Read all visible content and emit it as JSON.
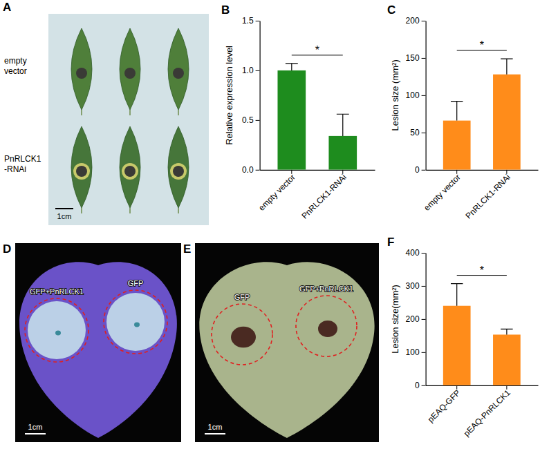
{
  "chart_data": [
    {
      "panel_label": "B",
      "type": "bar",
      "categories": [
        "empty vector",
        "PnRLCK1-RNAi"
      ],
      "values": [
        1.0,
        0.34
      ],
      "errors": [
        0.07,
        0.22
      ],
      "color": "#1e8c1e",
      "ylim": [
        0,
        1.5
      ],
      "yticks": [
        {
          "value": 0,
          "label": "0.0"
        },
        {
          "value": 0.5,
          "label": "0.5"
        },
        {
          "value": 1,
          "label": "1.0"
        },
        {
          "value": 1.5,
          "label": "1.5"
        }
      ],
      "y_label": "Relative expression level",
      "annotations": [
        {
          "text": "*"
        }
      ]
    },
    {
      "panel_label": "C",
      "type": "bar",
      "categories": [
        "empty vector",
        "PnRLCK1-RNAi"
      ],
      "values": [
        66,
        128
      ],
      "errors": [
        26,
        21
      ],
      "color": "#ff8c1a",
      "ylim": [
        0,
        200
      ],
      "yticks": [
        0,
        50,
        100,
        150,
        200
      ],
      "y_label": "Lesion size (mm²)",
      "annotations": [
        {
          "text": "*"
        }
      ]
    },
    {
      "panel_label": "F",
      "type": "bar",
      "categories": [
        "pEAQ-GFP",
        "pEAQ-PnRLCK1"
      ],
      "values": [
        240,
        153
      ],
      "errors": [
        67,
        17
      ],
      "color": "#ff8c1a",
      "ylim": [
        0,
        400
      ],
      "yticks": [
        0,
        100,
        200,
        300,
        400
      ],
      "y_label": "Lesion size(mm²)",
      "annotations": [
        {
          "text": "*"
        }
      ]
    }
  ],
  "image_panels": [
    {
      "panel_label": "A",
      "row_labels": [
        "empty vector",
        "PnRLCK1-RNAi"
      ],
      "scale_bar": "1cm"
    },
    {
      "panel_label": "D",
      "labels": [
        "GFP+PnRLCK1",
        "GFP"
      ],
      "scale_bar": "1cm"
    },
    {
      "panel_label": "E",
      "labels": [
        "GFP",
        "GFP+PnRLCK1"
      ],
      "scale_bar": "1cm"
    }
  ]
}
